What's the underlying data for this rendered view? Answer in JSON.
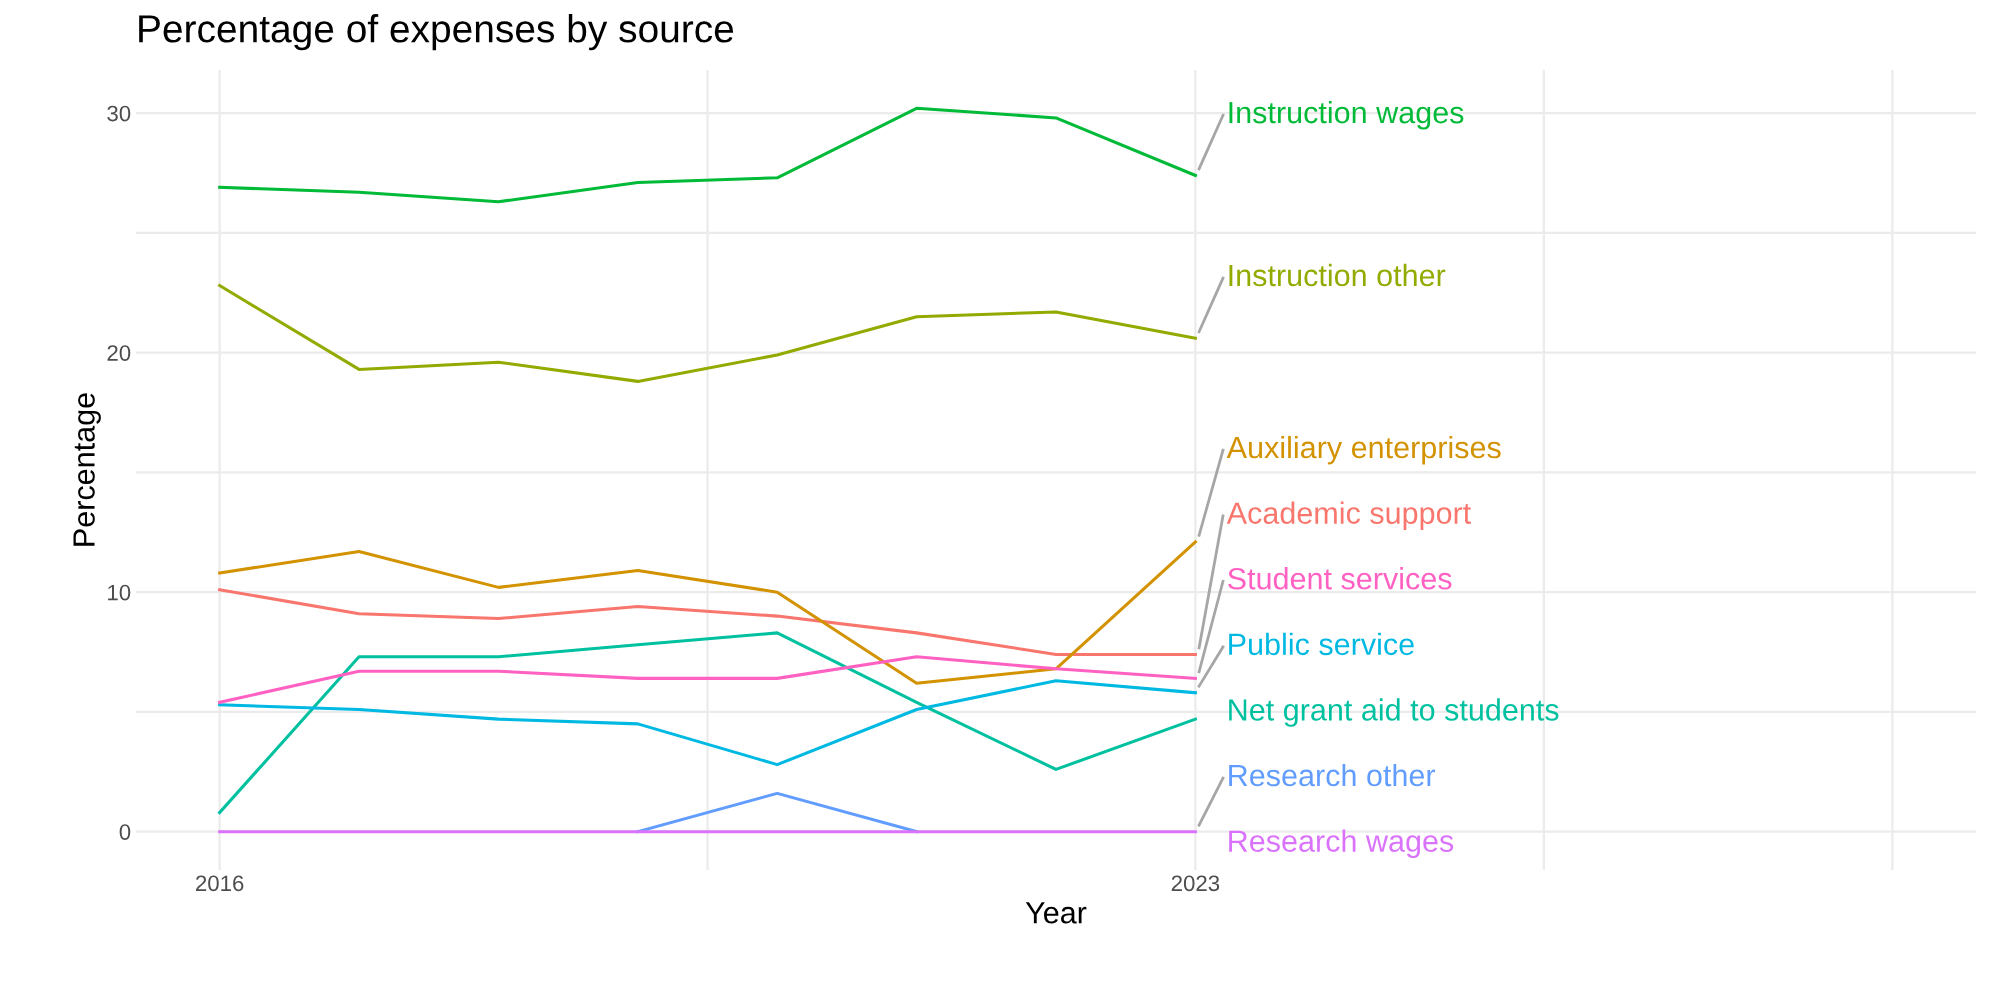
{
  "chart_data": {
    "type": "line",
    "title": "Percentage of expenses by source",
    "xlabel": "Year",
    "ylabel": "Percentage",
    "x": [
      2016,
      2017,
      2018,
      2019,
      2020,
      2021,
      2022,
      2023
    ],
    "xlim": [
      2015.4,
      2028.6
    ],
    "xticks": [
      2016,
      {
        "value": 2019.5,
        "label": null
      },
      2023,
      {
        "value": 2025.5,
        "label": null
      },
      {
        "value": 2028,
        "label": null
      }
    ],
    "ylim": [
      -1.6,
      31.8
    ],
    "yticks": [
      0,
      {
        "value": 5,
        "label": null
      },
      10,
      {
        "value": 15,
        "label": null
      },
      20,
      {
        "value": 25,
        "label": null
      },
      30
    ],
    "grid": true,
    "legend": false,
    "marker": "none",
    "line_style": "solid",
    "series": [
      {
        "name": "Academic support",
        "color": "#f8766d",
        "values": [
          10.1,
          9.1,
          8.9,
          9.4,
          9.0,
          8.3,
          7.4,
          7.4
        ]
      },
      {
        "name": "Auxiliary enterprises",
        "color": "#d39200",
        "values": [
          10.8,
          11.7,
          10.2,
          10.9,
          10.0,
          6.2,
          6.8,
          12.1
        ]
      },
      {
        "name": "Instruction other",
        "color": "#93aa00",
        "values": [
          22.8,
          19.3,
          19.6,
          18.8,
          19.9,
          21.5,
          21.7,
          20.6
        ]
      },
      {
        "name": "Instruction wages",
        "color": "#00ba38",
        "values": [
          26.9,
          26.7,
          26.3,
          27.1,
          27.3,
          30.2,
          29.8,
          27.4
        ]
      },
      {
        "name": "Net grant aid to students",
        "color": "#00c19f",
        "values": [
          0.8,
          7.3,
          7.3,
          7.8,
          8.3,
          5.4,
          2.6,
          4.7
        ]
      },
      {
        "name": "Public service",
        "color": "#00b9e3",
        "values": [
          5.3,
          5.1,
          4.7,
          4.5,
          2.8,
          5.1,
          6.3,
          5.8
        ]
      },
      {
        "name": "Research other",
        "color": "#619cff",
        "values": [
          null,
          null,
          null,
          0,
          1.6,
          0,
          null,
          null
        ]
      },
      {
        "name": "Research wages",
        "color": "#db72fb",
        "values": [
          0,
          0,
          0,
          0,
          0,
          0,
          0,
          0
        ]
      },
      {
        "name": "Student services",
        "color": "#ff61c3",
        "values": [
          5.4,
          6.7,
          6.7,
          6.4,
          6.4,
          7.3,
          6.8,
          6.4
        ]
      }
    ]
  }
}
